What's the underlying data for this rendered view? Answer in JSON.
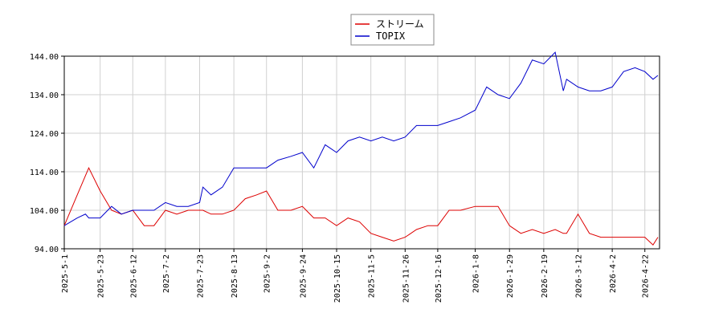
{
  "chart_data": {
    "type": "line",
    "x": [
      "2025-5-1",
      "2025-5-9",
      "2025-5-14",
      "2025-5-16",
      "2025-5-23",
      "2025-5-30",
      "2025-6-5",
      "2025-6-12",
      "2025-6-19",
      "2025-6-25",
      "2025-7-2",
      "2025-7-9",
      "2025-7-16",
      "2025-7-23",
      "2025-7-25",
      "2025-7-30",
      "2025-8-6",
      "2025-8-13",
      "2025-8-20",
      "2025-8-27",
      "2025-9-2",
      "2025-9-9",
      "2025-9-17",
      "2025-9-24",
      "2025-10-1",
      "2025-10-8",
      "2025-10-15",
      "2025-10-22",
      "2025-10-29",
      "2025-11-5",
      "2025-11-12",
      "2025-11-19",
      "2025-11-26",
      "2025-12-3",
      "2025-12-10",
      "2025-12-16",
      "2025-12-23",
      "2025-12-30",
      "2026-1-8",
      "2026-1-15",
      "2026-1-22",
      "2026-1-29",
      "2026-2-5",
      "2026-2-12",
      "2026-2-19",
      "2026-2-26",
      "2026-3-3",
      "2026-3-5",
      "2026-3-12",
      "2026-3-19",
      "2026-3-26",
      "2026-4-2",
      "2026-4-9",
      "2026-4-16",
      "2026-4-22",
      "2026-4-27",
      "2026-4-30"
    ],
    "series": [
      {
        "name": "ストリーム",
        "color": "#dd0000",
        "values": [
          100,
          108,
          113,
          115,
          109,
          104,
          103,
          104,
          100,
          100,
          104,
          103,
          104,
          104,
          104,
          103,
          103,
          104,
          107,
          108,
          109,
          104,
          104,
          105,
          102,
          102,
          100,
          102,
          101,
          98,
          97,
          96,
          97,
          99,
          100,
          100,
          104,
          104,
          105,
          105,
          105,
          100,
          98,
          99,
          98,
          99,
          98,
          98,
          103,
          98,
          97,
          97,
          97,
          97,
          97,
          95,
          97
        ]
      },
      {
        "name": "TOPIX",
        "color": "#0000cc",
        "values": [
          100,
          102,
          103,
          102,
          102,
          105,
          103,
          104,
          104,
          104,
          106,
          105,
          105,
          106,
          110,
          108,
          110,
          115,
          115,
          115,
          115,
          117,
          118,
          119,
          115,
          121,
          119,
          122,
          123,
          122,
          123,
          122,
          123,
          126,
          126,
          126,
          127,
          128,
          130,
          136,
          134,
          133,
          137,
          143,
          142,
          145,
          135,
          138,
          136,
          135,
          135,
          136,
          140,
          141,
          140,
          138,
          139
        ]
      }
    ],
    "xlim": [
      "2025-5-1",
      "2026-5-1"
    ],
    "xticks": [
      "2025-5-1",
      "2025-5-23",
      "2025-6-12",
      "2025-7-2",
      "2025-7-23",
      "2025-8-13",
      "2025-9-2",
      "2025-9-24",
      "2025-10-15",
      "2025-11-5",
      "2025-11-26",
      "2025-12-16",
      "2026-1-8",
      "2026-1-29",
      "2026-2-19",
      "2026-3-12",
      "2026-4-2",
      "2026-4-22"
    ],
    "ylim": [
      94,
      144
    ],
    "yticks": [
      {
        "value": 94,
        "label": "94.00"
      },
      {
        "value": 104,
        "label": "104.00"
      },
      {
        "value": 114,
        "label": "114.00"
      },
      {
        "value": 124,
        "label": "124.00"
      },
      {
        "value": 134,
        "label": "134.00"
      },
      {
        "value": 144,
        "label": "144.00"
      }
    ],
    "grid": true
  }
}
